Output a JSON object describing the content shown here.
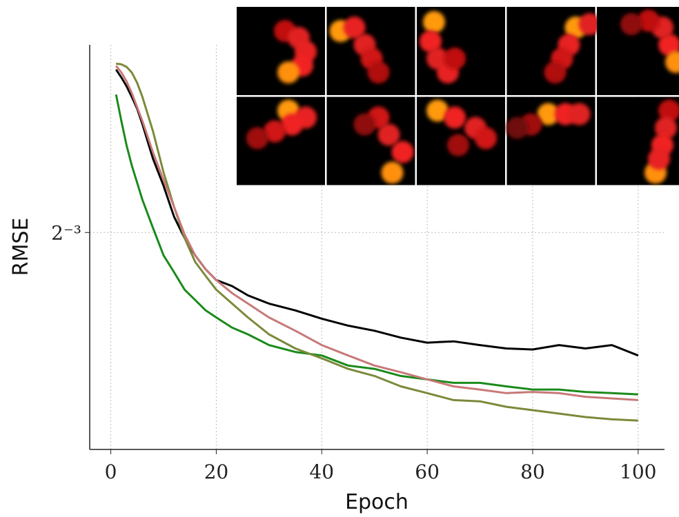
{
  "chart_data": {
    "type": "line",
    "x_label": "Epoch",
    "y_label": "RMSE",
    "x": [
      1,
      2,
      3,
      4,
      5,
      6,
      8,
      10,
      12,
      14,
      16,
      18,
      20,
      23,
      26,
      30,
      35,
      40,
      45,
      50,
      55,
      60,
      65,
      70,
      75,
      80,
      85,
      90,
      95,
      100
    ],
    "series": [
      {
        "color": "#000000",
        "values": [
          0.22,
          0.214,
          0.2075,
          0.2,
          0.192,
          0.182,
          0.1615,
          0.147,
          0.132,
          0.1226,
          0.1155,
          0.11,
          0.106,
          0.1038,
          0.1005,
          0.0977,
          0.0954,
          0.0927,
          0.0905,
          0.0889,
          0.0868,
          0.0853,
          0.0857,
          0.0846,
          0.0836,
          0.0833,
          0.0846,
          0.0836,
          0.0846,
          0.0816
        ]
      },
      {
        "color": "#1a8a1a",
        "values": [
          0.2017,
          0.184,
          0.169,
          0.1576,
          0.1485,
          0.14,
          0.127,
          0.1155,
          0.1089,
          0.1025,
          0.0989,
          0.0954,
          0.0931,
          0.0899,
          0.0878,
          0.0846,
          0.0826,
          0.0816,
          0.0788,
          0.0779,
          0.076,
          0.0751,
          0.0742,
          0.0742,
          0.0733,
          0.0725,
          0.0725,
          0.0719,
          0.0716,
          0.0713
        ]
      },
      {
        "color": "#7a8a3a",
        "values": [
          0.2245,
          0.224,
          0.222,
          0.2177,
          0.21,
          0.2,
          0.1776,
          0.154,
          0.1366,
          0.1226,
          0.1129,
          0.1075,
          0.1025,
          0.0977,
          0.0931,
          0.0878,
          0.0836,
          0.0808,
          0.0779,
          0.076,
          0.0733,
          0.0716,
          0.0699,
          0.0696,
          0.0683,
          0.0675,
          0.0667,
          0.0659,
          0.0654,
          0.0651
        ]
      },
      {
        "color": "#c87878",
        "values": [
          0.2229,
          0.2177,
          0.211,
          0.2026,
          0.193,
          0.184,
          0.165,
          0.15,
          0.1366,
          0.1241,
          0.1155,
          0.11,
          0.106,
          0.1013,
          0.0977,
          0.0931,
          0.0889,
          0.0846,
          0.0816,
          0.0788,
          0.077,
          0.0751,
          0.0733,
          0.0725,
          0.0716,
          0.0719,
          0.0716,
          0.0707,
          0.0703,
          0.0699
        ]
      }
    ],
    "xlim": [
      -4,
      105
    ],
    "xticks": [
      0,
      20,
      40,
      60,
      80,
      100
    ],
    "ylim": [
      0.0589,
      0.2397
    ],
    "yticks": [
      {
        "value": 0.125,
        "label": "2⁻³"
      }
    ],
    "y_scale": "log",
    "grid": true
  }
}
